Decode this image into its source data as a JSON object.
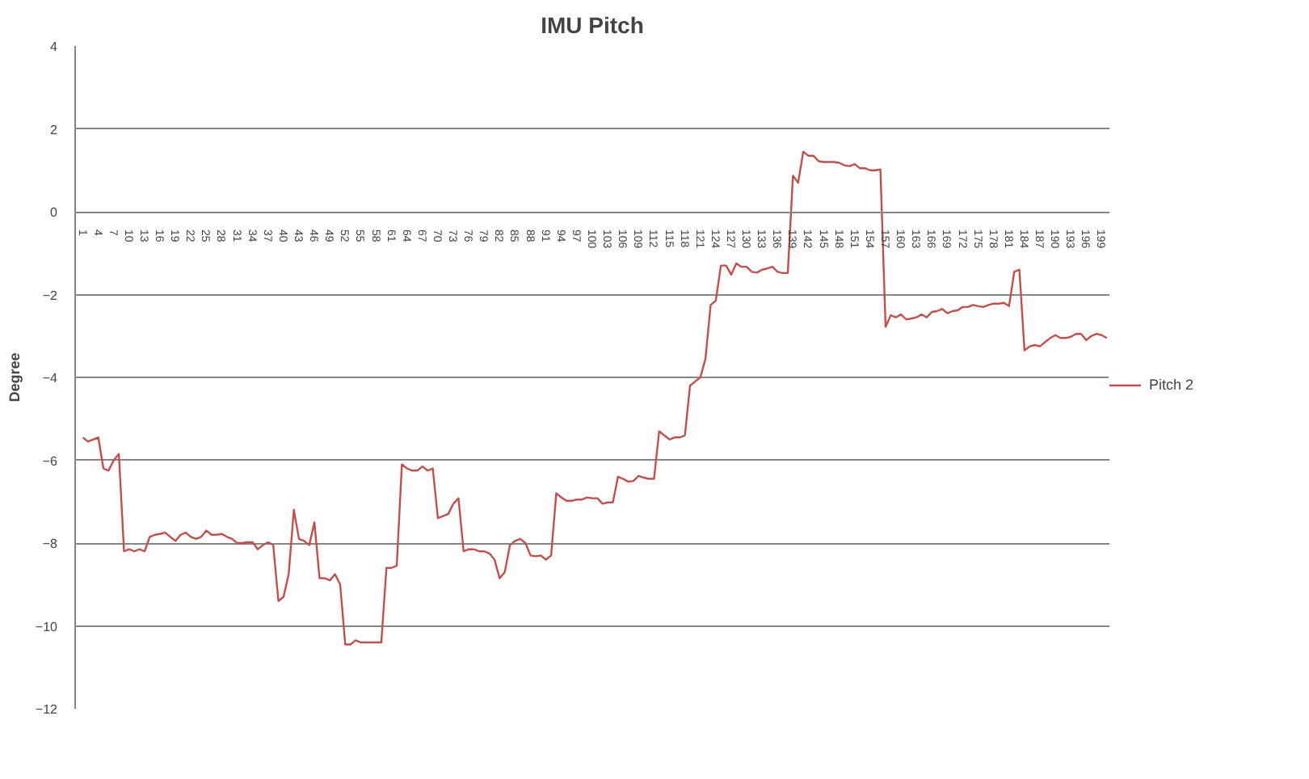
{
  "chart_data": {
    "type": "line",
    "title": "IMU Pitch",
    "ylabel": "Degree",
    "categories": [
      "1",
      null,
      null,
      "4",
      null,
      null,
      "7",
      null,
      null,
      "10",
      null,
      null,
      "13",
      null,
      null,
      "16",
      null,
      null,
      "19",
      null,
      null,
      "22",
      null,
      null,
      "25",
      null,
      null,
      "28",
      null,
      null,
      "31",
      null,
      null,
      "34",
      null,
      null,
      "37",
      null,
      null,
      "40",
      null,
      null,
      "43",
      null,
      null,
      "46",
      null,
      null,
      "49",
      null,
      null,
      "52",
      null,
      null,
      "55",
      null,
      null,
      "58",
      null,
      null,
      "61",
      null,
      null,
      "64",
      null,
      null,
      "67",
      null,
      null,
      "70",
      null,
      null,
      "73",
      null,
      null,
      "76",
      null,
      null,
      "79",
      null,
      null,
      "82",
      null,
      null,
      "85",
      null,
      null,
      "88",
      null,
      null,
      "91",
      null,
      null,
      "94",
      null,
      null,
      "97",
      null,
      null,
      "100",
      null,
      null,
      "103",
      null,
      null,
      "106",
      null,
      null,
      "109",
      null,
      null,
      "112",
      null,
      null,
      "115",
      null,
      null,
      "118",
      null,
      null,
      "121",
      null,
      null,
      "124",
      null,
      null,
      "127",
      null,
      null,
      "130",
      null,
      null,
      "133",
      null,
      null,
      "136",
      null,
      null,
      "139",
      null,
      null,
      "142",
      null,
      null,
      "145",
      null,
      null,
      "148",
      null,
      null,
      "151",
      null,
      null,
      "154",
      null,
      null,
      "157",
      null,
      null,
      "160",
      null,
      null,
      "163",
      null,
      null,
      "166",
      null,
      null,
      "169",
      null,
      null,
      "172",
      null,
      null,
      "175",
      null,
      null,
      "178",
      null,
      null,
      "181",
      null,
      null,
      "184",
      null,
      null,
      "187",
      null,
      null,
      "190",
      null,
      null,
      "193",
      null,
      null,
      "196",
      null,
      null,
      "199",
      null
    ],
    "series": [
      {
        "name": "Pitch 2",
        "color": "#c0504d",
        "values": [
          -5.45,
          -5.55,
          -5.5,
          -5.45,
          -6.2,
          -6.25,
          -6.0,
          -5.85,
          -8.2,
          -8.15,
          -8.2,
          -8.15,
          -8.2,
          -7.85,
          -7.8,
          -7.78,
          -7.75,
          -7.85,
          -7.95,
          -7.8,
          -7.75,
          -7.85,
          -7.9,
          -7.85,
          -7.7,
          -7.8,
          -7.8,
          -7.78,
          -7.85,
          -7.9,
          -8.0,
          -8.0,
          -7.98,
          -7.98,
          -8.15,
          -8.05,
          -7.98,
          -8.05,
          -9.4,
          -9.3,
          -8.75,
          -7.2,
          -7.9,
          -7.95,
          -8.05,
          -7.5,
          -8.85,
          -8.85,
          -8.9,
          -8.75,
          -9.0,
          -10.45,
          -10.45,
          -10.35,
          -10.4,
          -10.4,
          -10.4,
          -10.4,
          -10.4,
          -8.6,
          -8.6,
          -8.55,
          -6.1,
          -6.2,
          -6.25,
          -6.25,
          -6.15,
          -6.25,
          -6.2,
          -7.4,
          -7.35,
          -7.3,
          -7.05,
          -6.92,
          -8.2,
          -8.15,
          -8.15,
          -8.2,
          -8.2,
          -8.25,
          -8.4,
          -8.85,
          -8.7,
          -8.05,
          -7.95,
          -7.9,
          -8.0,
          -8.3,
          -8.32,
          -8.3,
          -8.4,
          -8.3,
          -6.8,
          -6.9,
          -6.98,
          -6.98,
          -6.95,
          -6.95,
          -6.9,
          -6.92,
          -6.92,
          -7.05,
          -7.02,
          -7.02,
          -6.4,
          -6.45,
          -6.52,
          -6.5,
          -6.38,
          -6.42,
          -6.45,
          -6.45,
          -5.3,
          -5.4,
          -5.5,
          -5.45,
          -5.45,
          -5.4,
          -4.2,
          -4.1,
          -4.0,
          -3.55,
          -2.25,
          -2.15,
          -1.3,
          -1.3,
          -1.52,
          -1.25,
          -1.33,
          -1.33,
          -1.45,
          -1.47,
          -1.4,
          -1.37,
          -1.33,
          -1.45,
          -1.48,
          -1.48,
          0.87,
          0.7,
          1.45,
          1.35,
          1.35,
          1.22,
          1.2,
          1.2,
          1.2,
          1.18,
          1.12,
          1.1,
          1.15,
          1.05,
          1.05,
          1.0,
          1.0,
          1.02,
          -2.78,
          -2.5,
          -2.55,
          -2.48,
          -2.6,
          -2.58,
          -2.55,
          -2.48,
          -2.55,
          -2.42,
          -2.4,
          -2.35,
          -2.45,
          -2.4,
          -2.38,
          -2.3,
          -2.3,
          -2.25,
          -2.28,
          -2.3,
          -2.25,
          -2.22,
          -2.22,
          -2.2,
          -2.28,
          -1.45,
          -1.4,
          -3.35,
          -3.25,
          -3.22,
          -3.25,
          -3.15,
          -3.05,
          -2.98,
          -3.05,
          -3.05,
          -3.02,
          -2.95,
          -2.95,
          -3.1,
          -3.0,
          -2.95,
          -2.98,
          -3.05
        ]
      }
    ],
    "ylim": [
      -12,
      4
    ],
    "yticks": [
      -12,
      -10,
      -8,
      -6,
      -4,
      -2,
      0,
      2,
      4
    ],
    "grid": "y",
    "legend": "right"
  }
}
